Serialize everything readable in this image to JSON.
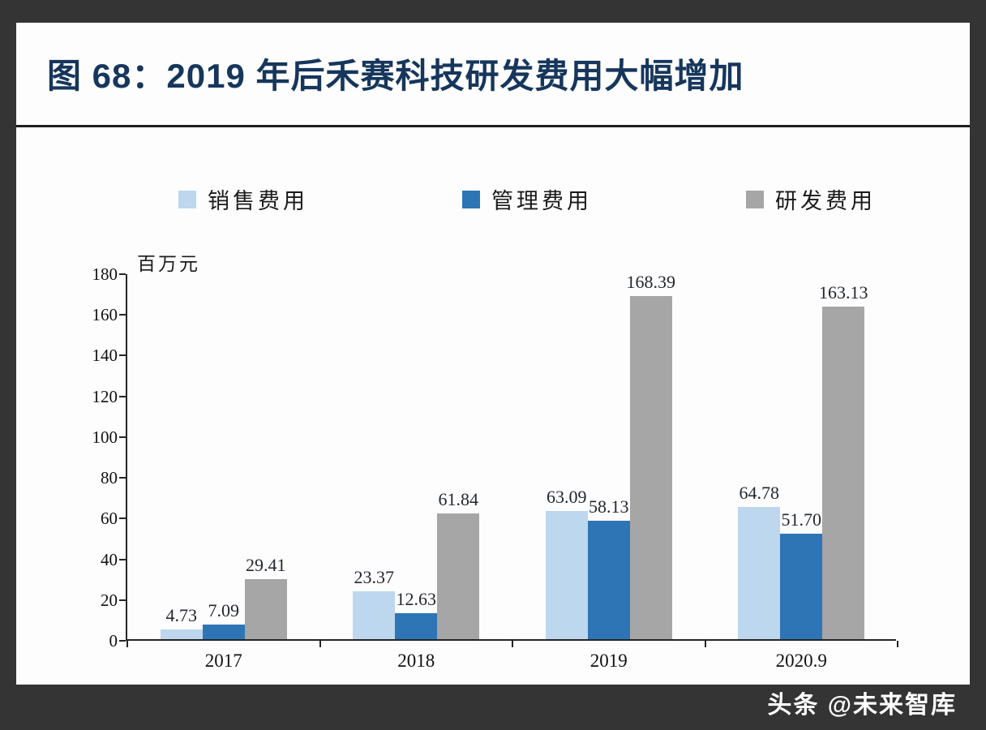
{
  "figure": {
    "title": "图 68：2019 年后禾赛科技研发费用大幅增加",
    "watermark": "头条 @未来智库"
  },
  "chart_data": {
    "type": "bar",
    "title": "图 68：2019 年后禾赛科技研发费用大幅增加",
    "unit_label": "百万元",
    "categories": [
      "2017",
      "2018",
      "2019",
      "2020.9"
    ],
    "series": [
      {
        "name": "销售费用",
        "color": "#bdd7ee",
        "values": [
          4.73,
          23.37,
          63.09,
          64.78
        ]
      },
      {
        "name": "管理费用",
        "color": "#2e75b6",
        "values": [
          7.09,
          12.63,
          58.13,
          51.7
        ]
      },
      {
        "name": "研发费用",
        "color": "#a6a6a6",
        "values": [
          29.41,
          61.84,
          168.39,
          163.13
        ]
      }
    ],
    "ylim": [
      0,
      180
    ],
    "ytick_step": 20,
    "yticks": [
      0,
      20,
      40,
      60,
      80,
      100,
      120,
      140,
      160,
      180
    ],
    "xlabel": "",
    "ylabel": "百万元",
    "grid": false,
    "legend_position": "top"
  }
}
